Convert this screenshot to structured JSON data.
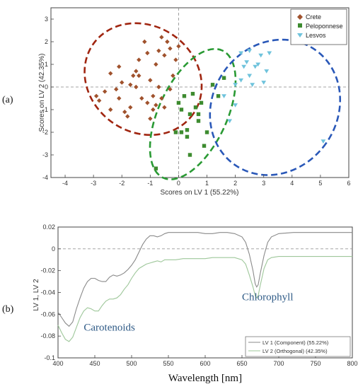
{
  "chart_data": [
    {
      "type": "scatter",
      "panel_label": "(a)",
      "xlabel": "Scores on LV 1 (55.22%)",
      "ylabel": "Scores on LV 2 (42.35%)",
      "xlim": [
        -4.5,
        6
      ],
      "ylim": [
        -4,
        3.5
      ],
      "xticks": [
        -4,
        -3,
        -2,
        -1,
        0,
        1,
        2,
        3,
        4,
        5,
        6
      ],
      "yticks": [
        -4,
        -3,
        -2,
        -1,
        0,
        1,
        2,
        3
      ],
      "legend_position": "top-right",
      "reference_lines": {
        "x": 0,
        "y": 0
      },
      "series": [
        {
          "name": "Crete",
          "marker": "diamond",
          "color": "#a0522d",
          "points": [
            [
              -2.9,
              -0.4
            ],
            [
              -2.6,
              -0.2
            ],
            [
              -2.4,
              0.6
            ],
            [
              -2.2,
              -0.1
            ],
            [
              -2.1,
              -0.5
            ],
            [
              -2.0,
              0.2
            ],
            [
              -1.9,
              -1.1
            ],
            [
              -1.8,
              -1.3
            ],
            [
              -1.7,
              0.1
            ],
            [
              -1.6,
              0.5
            ],
            [
              -1.5,
              0.0
            ],
            [
              -1.5,
              0.7
            ],
            [
              -1.4,
              1.2
            ],
            [
              -1.3,
              -0.5
            ],
            [
              -1.2,
              2.0
            ],
            [
              -1.1,
              1.5
            ],
            [
              -1.0,
              0.3
            ],
            [
              -0.9,
              -0.4
            ],
            [
              -0.8,
              1.0
            ],
            [
              -0.7,
              0.0
            ],
            [
              -0.6,
              -0.5
            ],
            [
              -0.5,
              1.4
            ],
            [
              -0.4,
              2.0
            ],
            [
              -0.3,
              -0.1
            ],
            [
              -0.2,
              0.5
            ],
            [
              -0.1,
              1.2
            ],
            [
              -0.6,
              2.2
            ],
            [
              -0.9,
              -1.0
            ],
            [
              -1.0,
              -1.4
            ],
            [
              -2.4,
              -1.0
            ],
            [
              -2.8,
              -0.6
            ],
            [
              -1.1,
              -0.7
            ],
            [
              -0.5,
              -0.9
            ],
            [
              -1.7,
              -0.9
            ],
            [
              -0.3,
              1.7
            ],
            [
              0.0,
              1.8
            ],
            [
              -0.7,
              1.6
            ],
            [
              -1.4,
              0.5
            ],
            [
              -2.1,
              0.9
            ],
            [
              -0.8,
              -0.8
            ]
          ]
        },
        {
          "name": "Peloponnese",
          "marker": "square",
          "color": "#3d8b2f",
          "points": [
            [
              0.0,
              -0.7
            ],
            [
              0.1,
              -1.0
            ],
            [
              0.2,
              -0.4
            ],
            [
              0.3,
              -1.9
            ],
            [
              0.4,
              -1.2
            ],
            [
              0.5,
              -0.3
            ],
            [
              0.6,
              -0.9
            ],
            [
              0.7,
              -1.5
            ],
            [
              0.8,
              -0.7
            ],
            [
              0.9,
              -2.6
            ],
            [
              1.0,
              -2.0
            ],
            [
              1.2,
              0.1
            ],
            [
              0.1,
              -2.0
            ],
            [
              -0.1,
              -2.0
            ],
            [
              0.4,
              -3.0
            ],
            [
              1.4,
              -0.4
            ],
            [
              1.6,
              0.4
            ],
            [
              -0.8,
              -3.6
            ],
            [
              0.3,
              -2.2
            ],
            [
              0.7,
              -1.2
            ]
          ]
        },
        {
          "name": "Lesvos",
          "marker": "triangle-down",
          "color": "#6fc3dc",
          "points": [
            [
              2.2,
              1.5
            ],
            [
              2.5,
              0.5
            ],
            [
              2.7,
              0.9
            ],
            [
              2.9,
              1.4
            ],
            [
              3.1,
              0.7
            ],
            [
              2.4,
              1.1
            ],
            [
              3.0,
              0.2
            ],
            [
              2.6,
              0.1
            ],
            [
              2.0,
              -0.8
            ],
            [
              1.8,
              -1.5
            ],
            [
              2.2,
              0.3
            ],
            [
              3.2,
              1.5
            ],
            [
              2.3,
              0.9
            ],
            [
              2.0,
              0.1
            ],
            [
              1.6,
              -0.4
            ],
            [
              5.1,
              -2.4
            ],
            [
              2.8,
              1.0
            ],
            [
              2.5,
              1.6
            ]
          ]
        }
      ],
      "ellipses": [
        {
          "group": "Crete",
          "color": "#a02510",
          "cx": -1.25,
          "cy": 0.35,
          "rx": 2.15,
          "ry": 2.35,
          "rotate_deg": 35
        },
        {
          "group": "Peloponnese",
          "color": "#2a9a34",
          "cx": 0.5,
          "cy": -1.2,
          "rx": 1.2,
          "ry": 3.1,
          "rotate_deg": 25
        },
        {
          "group": "Lesvos",
          "color": "#2a58b8",
          "cx": 3.4,
          "cy": -0.9,
          "rx": 2.2,
          "ry": 3.1,
          "rotate_deg": 35
        }
      ]
    },
    {
      "type": "line",
      "panel_label": "(b)",
      "xlabel": "Wavelength [nm]",
      "ylabel": "LV 1, LV 2",
      "xlim": [
        400,
        800
      ],
      "ylim": [
        -0.1,
        0.02
      ],
      "xticks": [
        400,
        450,
        500,
        550,
        600,
        650,
        700,
        750,
        800
      ],
      "yticks": [
        -0.1,
        -0.08,
        -0.06,
        -0.04,
        -0.02,
        0,
        0.02
      ],
      "ytick_labels": [
        "-0.1",
        "-0.08",
        "-0.06",
        "-0.04",
        "-0.02",
        "0",
        "0.02"
      ],
      "reference_lines": {
        "y": 0
      },
      "legend_position": "bottom-right",
      "annotations": [
        {
          "text": "Carotenoids",
          "x": 435,
          "y": -0.075
        },
        {
          "text": "Chlorophyll",
          "x": 650,
          "y": -0.047
        }
      ],
      "series": [
        {
          "name": "LV 1 (Component) (55.22%)",
          "color": "#8a8a8a",
          "x": [
            400,
            405,
            410,
            415,
            420,
            425,
            430,
            435,
            440,
            445,
            450,
            455,
            460,
            465,
            470,
            475,
            480,
            485,
            490,
            495,
            500,
            505,
            510,
            515,
            520,
            525,
            530,
            535,
            540,
            545,
            550,
            560,
            570,
            580,
            590,
            600,
            610,
            620,
            630,
            640,
            650,
            655,
            660,
            665,
            668,
            670,
            672,
            675,
            680,
            685,
            690,
            700,
            720,
            740,
            760,
            780,
            800
          ],
          "y": [
            -0.058,
            -0.063,
            -0.068,
            -0.071,
            -0.067,
            -0.055,
            -0.045,
            -0.036,
            -0.03,
            -0.027,
            -0.027,
            -0.029,
            -0.03,
            -0.03,
            -0.026,
            -0.024,
            -0.025,
            -0.024,
            -0.022,
            -0.019,
            -0.015,
            -0.01,
            -0.003,
            0.004,
            0.009,
            0.012,
            0.012,
            0.011,
            0.012,
            0.014,
            0.015,
            0.015,
            0.015,
            0.015,
            0.015,
            0.014,
            0.014,
            0.015,
            0.015,
            0.014,
            0.011,
            0.006,
            -0.005,
            -0.02,
            -0.032,
            -0.035,
            -0.033,
            -0.022,
            -0.006,
            0.006,
            0.011,
            0.014,
            0.015,
            0.015,
            0.015,
            0.015,
            0.015
          ]
        },
        {
          "name": "LV 2 (Orthogonal) (42.35%)",
          "color": "#9ec79a",
          "x": [
            400,
            405,
            410,
            415,
            420,
            425,
            430,
            435,
            440,
            445,
            450,
            455,
            460,
            465,
            470,
            475,
            480,
            485,
            490,
            495,
            500,
            505,
            510,
            515,
            520,
            525,
            530,
            535,
            540,
            545,
            550,
            560,
            570,
            580,
            590,
            600,
            610,
            620,
            630,
            640,
            650,
            655,
            660,
            665,
            668,
            670,
            672,
            675,
            680,
            685,
            690,
            700,
            720,
            740,
            760,
            780,
            800
          ],
          "y": [
            -0.07,
            -0.077,
            -0.083,
            -0.085,
            -0.081,
            -0.072,
            -0.063,
            -0.057,
            -0.054,
            -0.055,
            -0.057,
            -0.057,
            -0.052,
            -0.048,
            -0.046,
            -0.046,
            -0.045,
            -0.042,
            -0.037,
            -0.033,
            -0.027,
            -0.022,
            -0.018,
            -0.016,
            -0.014,
            -0.013,
            -0.012,
            -0.011,
            -0.012,
            -0.01,
            -0.01,
            -0.01,
            -0.009,
            -0.009,
            -0.009,
            -0.009,
            -0.008,
            -0.008,
            -0.008,
            -0.008,
            -0.01,
            -0.014,
            -0.024,
            -0.035,
            -0.043,
            -0.045,
            -0.043,
            -0.033,
            -0.018,
            -0.01,
            -0.008,
            -0.007,
            -0.007,
            -0.007,
            -0.007,
            -0.007,
            -0.007
          ]
        }
      ]
    }
  ]
}
